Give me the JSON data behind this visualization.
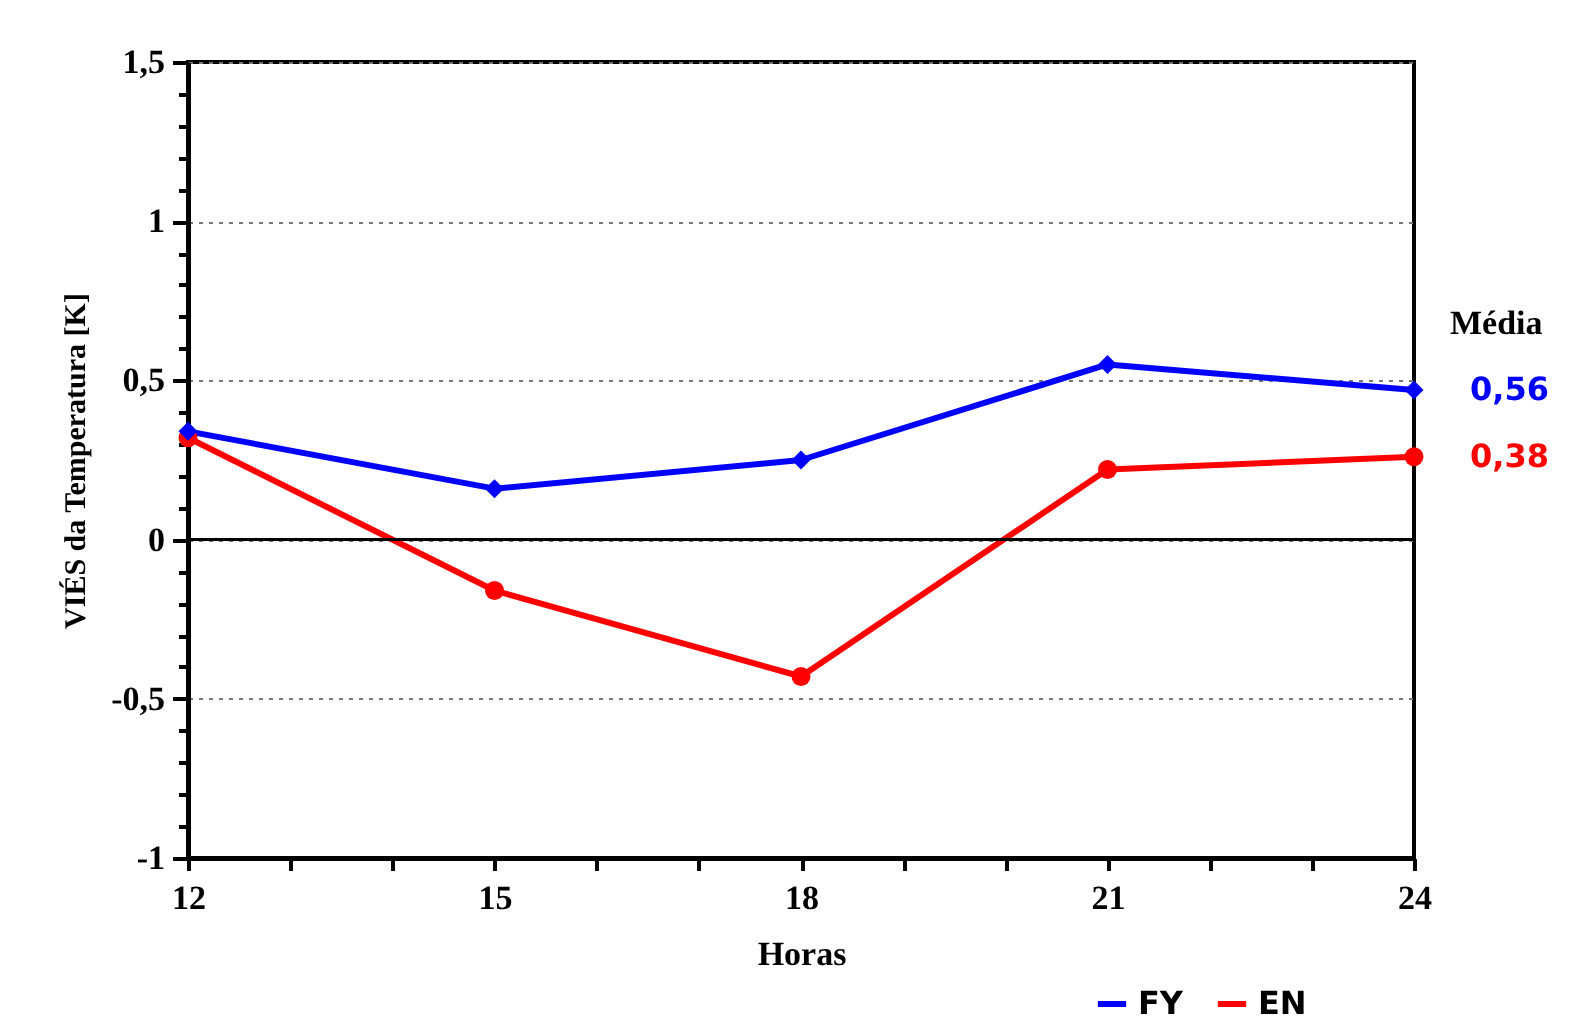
{
  "chart_data": {
    "type": "line",
    "xlabel": "Horas",
    "ylabel": "VIÉS da Temperatura [K]",
    "x": [
      12,
      15,
      18,
      21,
      24
    ],
    "series": [
      {
        "name": "FY",
        "color": "#0000ff",
        "marker": "diamond",
        "values": [
          0.34,
          0.16,
          0.25,
          0.55,
          0.47
        ]
      },
      {
        "name": "EN",
        "color": "#ff0000",
        "marker": "circle",
        "values": [
          0.32,
          -0.16,
          -0.43,
          0.22,
          0.26
        ]
      }
    ],
    "xlim": [
      12,
      24
    ],
    "xticks": [
      12,
      {
        "value": 13,
        "label": null
      },
      {
        "value": 14,
        "label": null
      },
      15,
      {
        "value": 16,
        "label": null
      },
      {
        "value": 17,
        "label": null
      },
      18,
      {
        "value": 19,
        "label": null
      },
      {
        "value": 20,
        "label": null
      },
      21,
      {
        "value": 22,
        "label": null
      },
      {
        "value": 23,
        "label": null
      },
      24
    ],
    "ylim": [
      -1,
      1.5
    ],
    "yticks": [
      {
        "value": -1,
        "label": "-1"
      },
      {
        "value": -0.9,
        "label": null
      },
      {
        "value": -0.8,
        "label": null
      },
      {
        "value": -0.7,
        "label": null
      },
      {
        "value": -0.6,
        "label": null
      },
      {
        "value": -0.5,
        "label": "-0,5"
      },
      {
        "value": -0.4,
        "label": null
      },
      {
        "value": -0.3,
        "label": null
      },
      {
        "value": -0.2,
        "label": null
      },
      {
        "value": -0.1,
        "label": null
      },
      {
        "value": 0,
        "label": "0"
      },
      {
        "value": 0.1,
        "label": null
      },
      {
        "value": 0.2,
        "label": null
      },
      {
        "value": 0.3,
        "label": null
      },
      {
        "value": 0.4,
        "label": null
      },
      {
        "value": 0.5,
        "label": "0,5"
      },
      {
        "value": 0.6,
        "label": null
      },
      {
        "value": 0.7,
        "label": null
      },
      {
        "value": 0.8,
        "label": null
      },
      {
        "value": 0.9,
        "label": null
      },
      {
        "value": 1,
        "label": "1"
      },
      {
        "value": 1.1,
        "label": null
      },
      {
        "value": 1.2,
        "label": null
      },
      {
        "value": 1.3,
        "label": null
      },
      {
        "value": 1.4,
        "label": null
      },
      {
        "value": 1.5,
        "label": "1,5"
      }
    ],
    "grid": "y",
    "legend": "bottom right",
    "line_style": "solid",
    "ref_lines": [
      {
        "axis": "y",
        "value": 0,
        "color": "#000000",
        "line_style": "solid"
      }
    ],
    "annotations": [
      "Média",
      "0,56",
      "0,38"
    ]
  }
}
